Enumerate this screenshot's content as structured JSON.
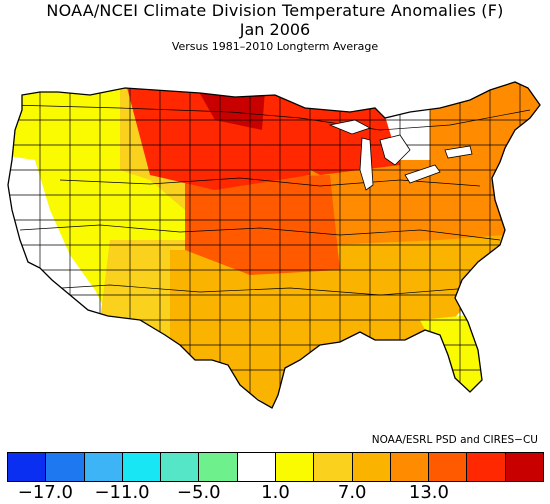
{
  "title": "NOAA/NCEI Climate Division Temperature Anomalies (F)",
  "period": "Jan 2006",
  "subtitle": "Versus 1981–2010 Longterm Average",
  "credit": "NOAA/ESRL PSD and CIRES−CU",
  "legend": {
    "colors": [
      "#0a2ff0",
      "#1e78f0",
      "#3cb4f5",
      "#19e6f5",
      "#55e6c8",
      "#6ef08c",
      "#ffffff",
      "#fafa00",
      "#fad21e",
      "#fab400",
      "#ff8c00",
      "#ff5a00",
      "#ff2800",
      "#c80000"
    ],
    "tick_labels": [
      "−17.0",
      "−11.0",
      "−5.0",
      "1.0",
      "7.0",
      "13.0"
    ],
    "tick_boundaries": [
      1,
      3,
      5,
      7,
      9,
      11
    ]
  },
  "regions": [
    {
      "id": "pacific-northwest",
      "anomaly_class": 7
    },
    {
      "id": "california-nevada-west",
      "anomaly_class": 6
    },
    {
      "id": "great-basin",
      "anomaly_class": 7
    },
    {
      "id": "rockies-north",
      "anomaly_class": 8
    },
    {
      "id": "southwest",
      "anomaly_class": 8
    },
    {
      "id": "northern-plains",
      "anomaly_class": 12
    },
    {
      "id": "upper-midwest",
      "anomaly_class": 12
    },
    {
      "id": "central-plains",
      "anomaly_class": 11
    },
    {
      "id": "midwest-east",
      "anomaly_class": 10
    },
    {
      "id": "texas-south",
      "anomaly_class": 9
    },
    {
      "id": "southeast",
      "anomaly_class": 9
    },
    {
      "id": "northeast",
      "anomaly_class": 10
    },
    {
      "id": "florida",
      "anomaly_class": 7
    },
    {
      "id": "dakota-core",
      "anomaly_class": 13
    }
  ]
}
